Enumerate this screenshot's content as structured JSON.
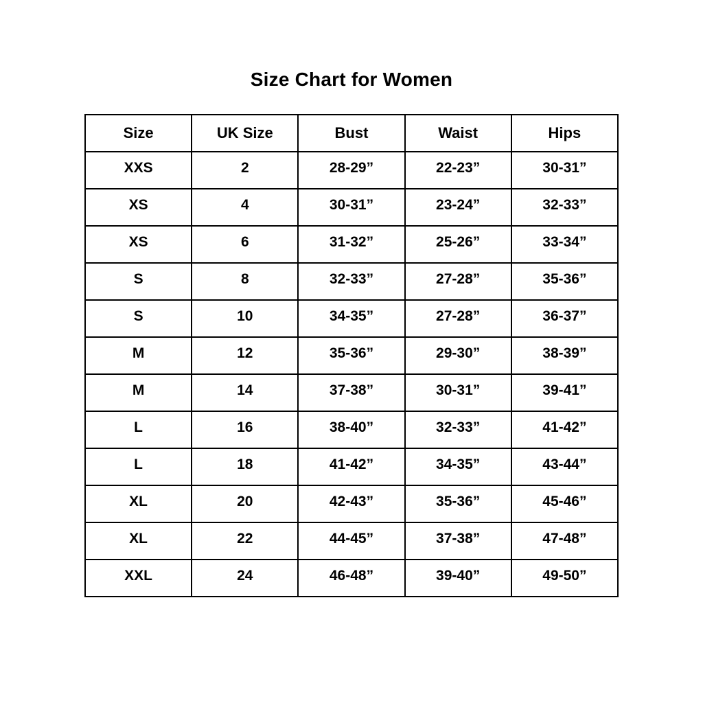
{
  "page": {
    "title": "Size Chart for Women"
  },
  "colors": {
    "background": "#ffffff",
    "border": "#000000",
    "text": "#000000"
  },
  "chart_data": {
    "type": "table",
    "title": "Size Chart for Women",
    "columns": [
      "Size",
      "UK Size",
      "Bust",
      "Waist",
      "Hips"
    ],
    "rows": [
      [
        "XXS",
        "2",
        "28-29”",
        "22-23”",
        "30-31”"
      ],
      [
        "XS",
        "4",
        "30-31”",
        "23-24”",
        "32-33”"
      ],
      [
        "XS",
        "6",
        "31-32”",
        "25-26”",
        "33-34”"
      ],
      [
        "S",
        "8",
        "32-33”",
        "27-28”",
        "35-36”"
      ],
      [
        "S",
        "10",
        "34-35”",
        "27-28”",
        "36-37”"
      ],
      [
        "M",
        "12",
        "35-36”",
        "29-30”",
        "38-39”"
      ],
      [
        "M",
        "14",
        "37-38”",
        "30-31”",
        "39-41”"
      ],
      [
        "L",
        "16",
        "38-40”",
        "32-33”",
        "41-42”"
      ],
      [
        "L",
        "18",
        "41-42”",
        "34-35”",
        "43-44”"
      ],
      [
        "XL",
        "20",
        "42-43”",
        "35-36”",
        "45-46”"
      ],
      [
        "XL",
        "22",
        "44-45”",
        "37-38”",
        "47-48”"
      ],
      [
        "XXL",
        "24",
        "46-48”",
        "39-40”",
        "49-50”"
      ]
    ]
  }
}
